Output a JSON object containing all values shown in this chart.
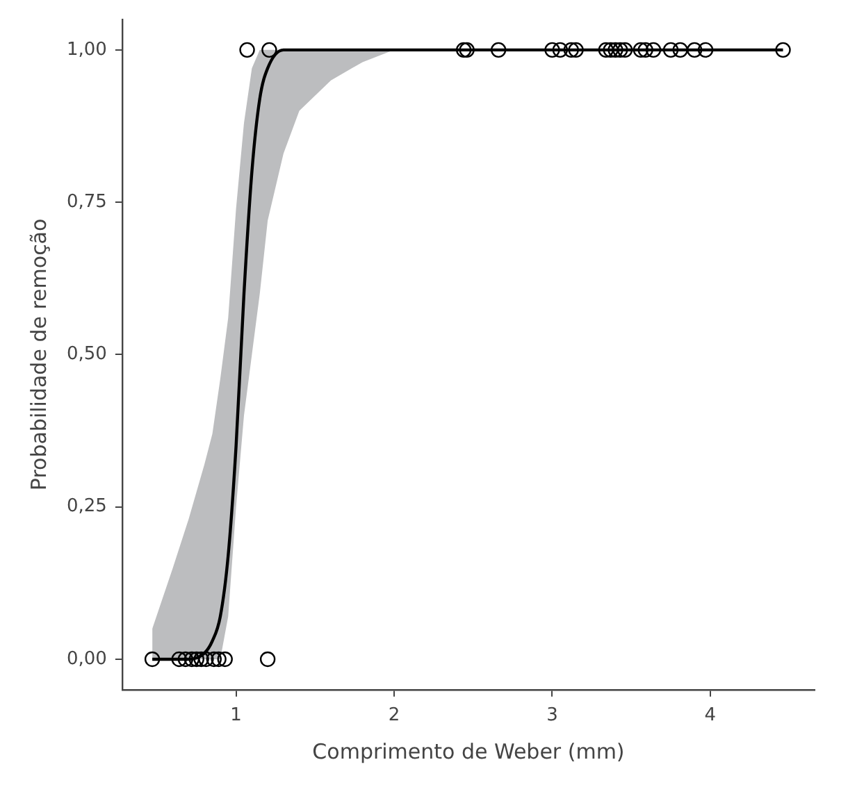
{
  "chart_data": {
    "type": "scatter",
    "xlabel": "Comprimento de Weber (mm)",
    "ylabel": "Probabilidade de remoção",
    "xlim": [
      0.28,
      4.66
    ],
    "xticks": [
      1,
      2,
      3,
      4
    ],
    "ylim": [
      -0.05,
      1.05
    ],
    "yticks": [
      {
        "value": 0,
        "label": "0,00"
      },
      {
        "value": 0.25,
        "label": "0,25"
      },
      {
        "value": 0.5,
        "label": "0,50"
      },
      {
        "value": 0.75,
        "label": "0,75"
      },
      {
        "value": 1,
        "label": "1,00"
      }
    ],
    "grid": false,
    "legend": false,
    "series": [
      {
        "type": "scatter",
        "marker": "circle",
        "color": "#000000",
        "x": [
          1.07,
          1.21,
          2.44,
          2.46,
          2.66,
          3.0,
          3.05,
          3.12,
          3.15,
          3.34,
          3.37,
          3.4,
          3.43,
          3.46,
          3.56,
          3.59,
          3.64,
          3.75,
          3.81,
          3.9,
          3.97,
          4.46,
          0.47,
          0.64,
          0.68,
          0.72,
          0.75,
          0.78,
          0.81,
          0.86,
          0.89,
          0.93,
          1.2
        ],
        "values": [
          1,
          1,
          1,
          1,
          1,
          1,
          1,
          1,
          1,
          1,
          1,
          1,
          1,
          1,
          1,
          1,
          1,
          1,
          1,
          1,
          1,
          1,
          0,
          0,
          0,
          0,
          0,
          0,
          0,
          0,
          0,
          0,
          0
        ]
      },
      {
        "type": "line",
        "marker": "none",
        "color": "#000000",
        "x": [
          0.47,
          0.6,
          0.7,
          0.8,
          0.85,
          0.9,
          0.95,
          1.0,
          1.05,
          1.1,
          1.15,
          1.2,
          1.3,
          1.4,
          1.6,
          1.8,
          2.0,
          3.0,
          4.46
        ],
        "values": [
          0,
          0,
          0,
          0.01,
          0.03,
          0.07,
          0.17,
          0.35,
          0.6,
          0.8,
          0.92,
          0.97,
          1,
          1,
          1,
          1,
          1,
          1,
          1
        ],
        "lower": [
          0,
          0,
          0,
          0,
          0,
          0,
          0.07,
          0.25,
          0.4,
          0.5,
          0.6,
          0.72,
          0.83,
          0.9,
          0.95,
          0.98,
          1,
          1,
          1
        ],
        "upper": [
          0.05,
          0.15,
          0.23,
          0.32,
          0.37,
          0.46,
          0.56,
          0.74,
          0.88,
          0.97,
          1,
          1,
          1,
          1,
          1,
          1,
          1,
          1,
          1
        ]
      }
    ]
  }
}
